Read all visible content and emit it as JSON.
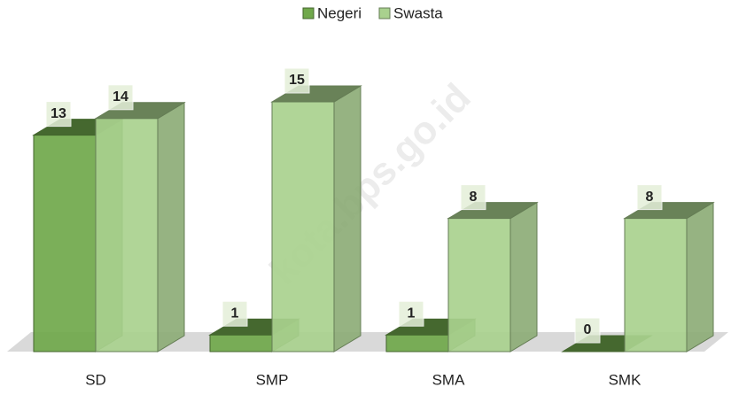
{
  "chart_data": {
    "type": "bar3d",
    "categories": [
      "SD",
      "SMP",
      "SMA",
      "SMK"
    ],
    "series": [
      {
        "name": "Negeri",
        "color": "#70a84b",
        "values": [
          13,
          1,
          1,
          0
        ]
      },
      {
        "name": "Swasta",
        "color": "#a9d18e",
        "values": [
          14,
          15,
          8,
          8
        ]
      }
    ],
    "legend": "top",
    "watermark": "kota.bps.go.id"
  }
}
